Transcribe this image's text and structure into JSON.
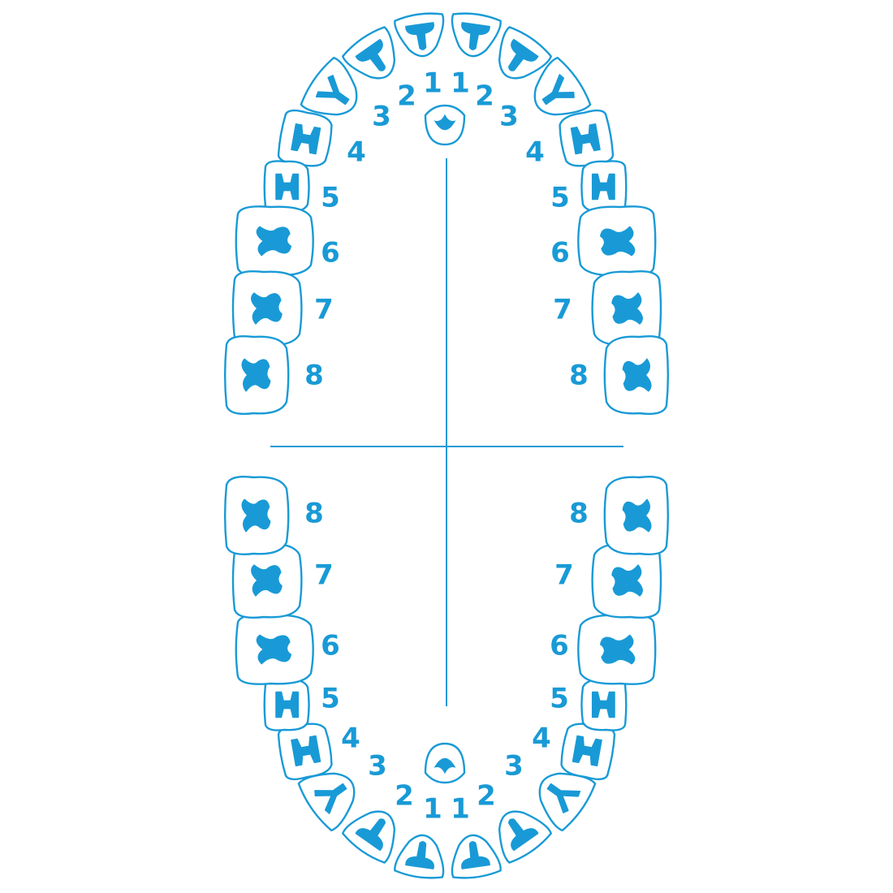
{
  "theme": {
    "accent": "#199ad6",
    "background": "#ffffff"
  },
  "teeth": [
    {
      "name": "upper-left-1",
      "label": "1",
      "arch": "upper",
      "side": "left",
      "kind": "incisor"
    },
    {
      "name": "upper-left-2",
      "label": "2",
      "arch": "upper",
      "side": "left",
      "kind": "incisor"
    },
    {
      "name": "upper-left-3",
      "label": "3",
      "arch": "upper",
      "side": "left",
      "kind": "canine"
    },
    {
      "name": "upper-left-4",
      "label": "4",
      "arch": "upper",
      "side": "left",
      "kind": "premolar"
    },
    {
      "name": "upper-left-5",
      "label": "5",
      "arch": "upper",
      "side": "left",
      "kind": "premolar"
    },
    {
      "name": "upper-left-6",
      "label": "6",
      "arch": "upper",
      "side": "left",
      "kind": "molar"
    },
    {
      "name": "upper-left-7",
      "label": "7",
      "arch": "upper",
      "side": "left",
      "kind": "molar"
    },
    {
      "name": "upper-left-8",
      "label": "8",
      "arch": "upper",
      "side": "left",
      "kind": "molar"
    },
    {
      "name": "upper-right-1",
      "label": "1",
      "arch": "upper",
      "side": "right",
      "kind": "incisor"
    },
    {
      "name": "upper-right-2",
      "label": "2",
      "arch": "upper",
      "side": "right",
      "kind": "incisor"
    },
    {
      "name": "upper-right-3",
      "label": "3",
      "arch": "upper",
      "side": "right",
      "kind": "canine"
    },
    {
      "name": "upper-right-4",
      "label": "4",
      "arch": "upper",
      "side": "right",
      "kind": "premolar"
    },
    {
      "name": "upper-right-5",
      "label": "5",
      "arch": "upper",
      "side": "right",
      "kind": "premolar"
    },
    {
      "name": "upper-right-6",
      "label": "6",
      "arch": "upper",
      "side": "right",
      "kind": "molar"
    },
    {
      "name": "upper-right-7",
      "label": "7",
      "arch": "upper",
      "side": "right",
      "kind": "molar"
    },
    {
      "name": "upper-right-8",
      "label": "8",
      "arch": "upper",
      "side": "right",
      "kind": "molar"
    },
    {
      "name": "lower-left-1",
      "label": "1",
      "arch": "lower",
      "side": "left",
      "kind": "incisor"
    },
    {
      "name": "lower-left-2",
      "label": "2",
      "arch": "lower",
      "side": "left",
      "kind": "incisor"
    },
    {
      "name": "lower-left-3",
      "label": "3",
      "arch": "lower",
      "side": "left",
      "kind": "canine"
    },
    {
      "name": "lower-left-4",
      "label": "4",
      "arch": "lower",
      "side": "left",
      "kind": "premolar"
    },
    {
      "name": "lower-left-5",
      "label": "5",
      "arch": "lower",
      "side": "left",
      "kind": "premolar"
    },
    {
      "name": "lower-left-6",
      "label": "6",
      "arch": "lower",
      "side": "left",
      "kind": "molar"
    },
    {
      "name": "lower-left-7",
      "label": "7",
      "arch": "lower",
      "side": "left",
      "kind": "molar"
    },
    {
      "name": "lower-left-8",
      "label": "8",
      "arch": "lower",
      "side": "left",
      "kind": "molar"
    },
    {
      "name": "lower-right-1",
      "label": "1",
      "arch": "lower",
      "side": "right",
      "kind": "incisor"
    },
    {
      "name": "lower-right-2",
      "label": "2",
      "arch": "lower",
      "side": "right",
      "kind": "incisor"
    },
    {
      "name": "lower-right-3",
      "label": "3",
      "arch": "lower",
      "side": "right",
      "kind": "canine"
    },
    {
      "name": "lower-right-4",
      "label": "4",
      "arch": "lower",
      "side": "right",
      "kind": "premolar"
    },
    {
      "name": "lower-right-5",
      "label": "5",
      "arch": "lower",
      "side": "right",
      "kind": "premolar"
    },
    {
      "name": "lower-right-6",
      "label": "6",
      "arch": "lower",
      "side": "right",
      "kind": "molar"
    },
    {
      "name": "lower-right-7",
      "label": "7",
      "arch": "lower",
      "side": "right",
      "kind": "molar"
    },
    {
      "name": "lower-right-8",
      "label": "8",
      "arch": "lower",
      "side": "right",
      "kind": "molar"
    }
  ],
  "extras": [
    {
      "name": "incisive-papilla",
      "arch": "upper"
    },
    {
      "name": "lingual-frenum",
      "arch": "lower"
    }
  ]
}
